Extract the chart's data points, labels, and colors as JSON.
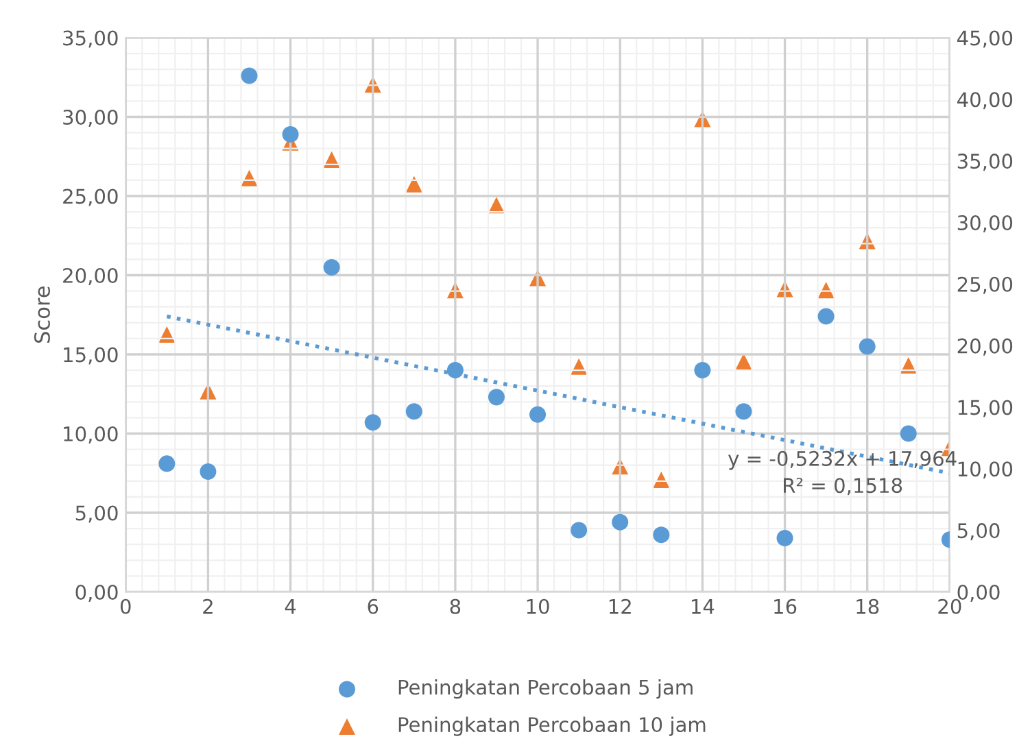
{
  "chart_data": {
    "type": "scatter",
    "ylabel": "Score",
    "xlim": [
      0,
      20
    ],
    "xticks": [
      0,
      2,
      4,
      6,
      8,
      10,
      12,
      14,
      16,
      18,
      20
    ],
    "ylim": [
      0,
      35
    ],
    "yticks": [
      {
        "value": 0,
        "label": "0,00"
      },
      {
        "value": 5,
        "label": "5,00"
      },
      {
        "value": 10,
        "label": "10,00"
      },
      {
        "value": 15,
        "label": "15,00"
      },
      {
        "value": 20,
        "label": "20,00"
      },
      {
        "value": 25,
        "label": "25,00"
      },
      {
        "value": 30,
        "label": "30,00"
      },
      {
        "value": 35,
        "label": "35,00"
      }
    ],
    "y2lim": [
      0,
      45
    ],
    "y2ticks": [
      {
        "value": 0,
        "label": "0,00"
      },
      {
        "value": 5,
        "label": "5,00"
      },
      {
        "value": 10,
        "label": "10,00"
      },
      {
        "value": 15,
        "label": "15,00"
      },
      {
        "value": 20,
        "label": "20,00"
      },
      {
        "value": 25,
        "label": "25,00"
      },
      {
        "value": 30,
        "label": "30,00"
      },
      {
        "value": 35,
        "label": "35,00"
      },
      {
        "value": 40,
        "label": "40,00"
      },
      {
        "value": 45,
        "label": "45,00"
      }
    ],
    "x": [
      1,
      2,
      3,
      4,
      5,
      6,
      7,
      8,
      9,
      10,
      11,
      12,
      13,
      14,
      15,
      16,
      17,
      18,
      19,
      20
    ],
    "grid": true,
    "legend": "bottom",
    "annotations": [
      "y = -0,5232x + 17,964",
      "R² = 0,1518"
    ],
    "series": [
      {
        "name": "Peningkatan Percobaan 5 jam",
        "color": "#5b9bd5",
        "marker": "circle",
        "values": [
          8.1,
          7.6,
          32.6,
          28.9,
          20.5,
          10.7,
          11.4,
          14.0,
          12.3,
          11.2,
          3.9,
          4.4,
          3.6,
          14.0,
          11.4,
          3.4,
          17.4,
          15.5,
          10.0,
          3.3
        ]
      },
      {
        "name": "Peningkatan Percobaan 10 jam",
        "color": "#ed7d31",
        "marker": "triangle",
        "axis": "y2",
        "values": [
          20.9,
          16.3,
          33.6,
          36.5,
          35.1,
          41.2,
          33.1,
          24.5,
          31.4,
          25.5,
          18.3,
          10.2,
          9.1,
          38.4,
          18.7,
          24.6,
          24.5,
          28.5,
          18.4,
          11.7
        ]
      },
      {
        "type": "line",
        "color": "#5b9bd5",
        "line_style": "dotted",
        "marker": "none",
        "x": [
          1,
          20
        ],
        "values": [
          17.4,
          7.5
        ]
      }
    ]
  }
}
